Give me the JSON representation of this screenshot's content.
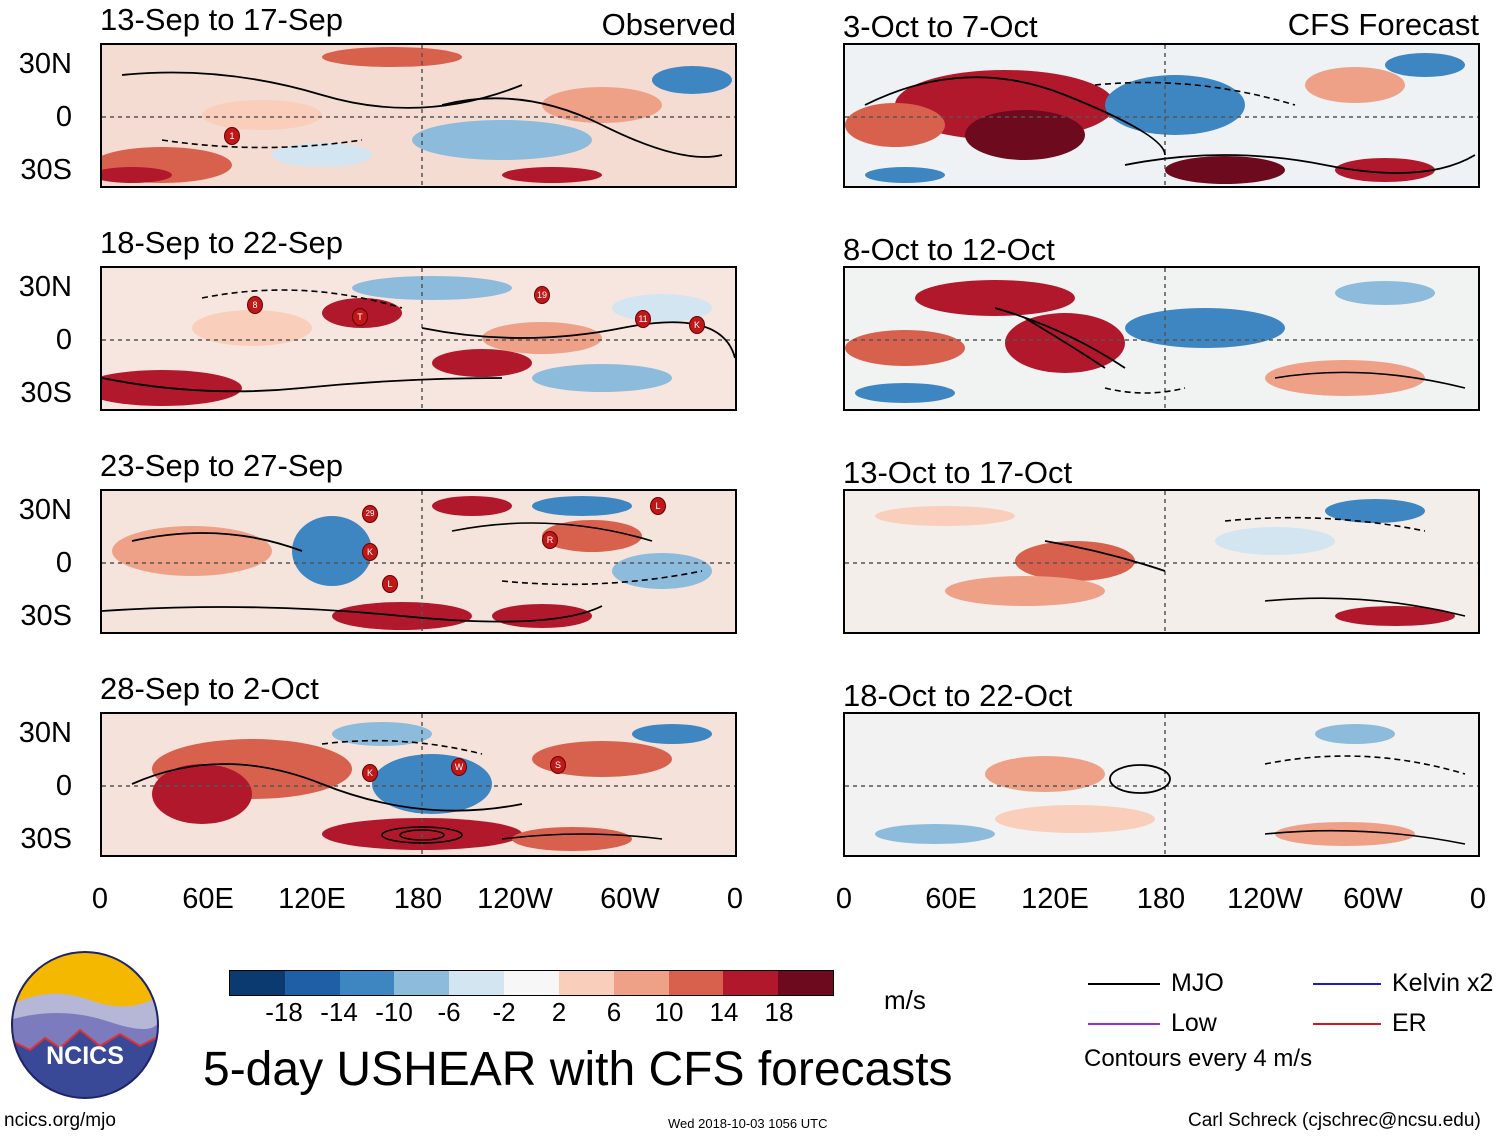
{
  "headers": {
    "observed": "Observed",
    "forecast": "CFS Forecast"
  },
  "observed_panels": [
    {
      "date": "13-Sep to 17-Sep",
      "storms": [
        "1"
      ]
    },
    {
      "date": "18-Sep to 22-Sep",
      "storms": [
        "8",
        "T",
        "19",
        "11",
        "K"
      ]
    },
    {
      "date": "23-Sep to 27-Sep",
      "storms": [
        "29",
        "K",
        "L",
        "R",
        "L"
      ]
    },
    {
      "date": "28-Sep to 2-Oct",
      "storms": [
        "K",
        "W",
        "S"
      ]
    }
  ],
  "forecast_panels": [
    {
      "date": "3-Oct to 7-Oct"
    },
    {
      "date": "8-Oct to 12-Oct"
    },
    {
      "date": "13-Oct to 17-Oct"
    },
    {
      "date": "18-Oct to 22-Oct"
    }
  ],
  "y_axis_labels": [
    "30N",
    "0",
    "30S"
  ],
  "x_axis_labels": [
    "0",
    "60E",
    "120E",
    "180",
    "120W",
    "60W",
    "0"
  ],
  "colorbar": {
    "ticks": [
      "-18",
      "-14",
      "-10",
      "-6",
      "-2",
      "2",
      "6",
      "10",
      "14",
      "18"
    ],
    "units": "m/s",
    "colors": [
      "#0b3a70",
      "#1f5fa6",
      "#3d86c2",
      "#8dbbdb",
      "#d2e5f0",
      "#f7f7f7",
      "#f9cfbb",
      "#eea187",
      "#d8614e",
      "#b2182b",
      "#6d0a1e"
    ]
  },
  "legend": {
    "items": [
      {
        "label": "MJO",
        "color": "#000000"
      },
      {
        "label": "Kelvin x2",
        "color": "#1a1acc"
      },
      {
        "label": "Low",
        "color": "#9b30d0"
      },
      {
        "label": "ER",
        "color": "#d01a1a"
      }
    ],
    "note": "Contours every 4 m/s"
  },
  "logo_text": "NCICS",
  "main_title": "5-day USHEAR with CFS forecasts",
  "footer": {
    "left": "ncics.org/mjo",
    "center": "Wed 2018-10-03 1056 UTC",
    "right": "Carl Schreck (cjschrec@ncsu.edu)"
  }
}
